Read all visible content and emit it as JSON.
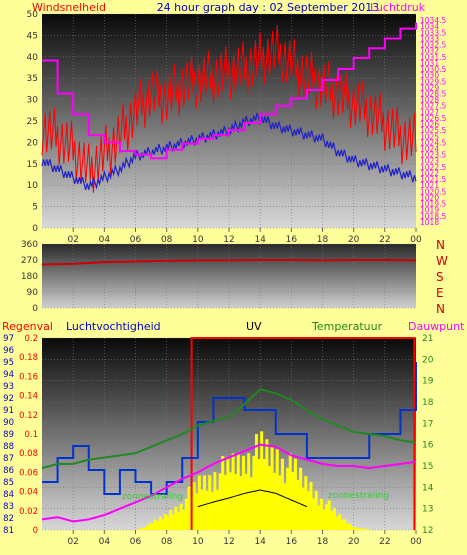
{
  "colors": {
    "background": "#ffff99",
    "wind_avg": "#2020c8",
    "wind_gust": "#ff0000",
    "pressure": "#ff00ff",
    "direction": "#cc0000",
    "humidity": "#0033cc",
    "temperature": "#228822",
    "uv": "#ff0000",
    "dewpoint": "#ff00ff",
    "solar": "#ffff00",
    "solar_ref": "#000000"
  },
  "header": {
    "left": "Windsnelheid",
    "center": "24 hour graph day : 02 September 2013",
    "right": "Luchtdruk"
  },
  "x_tick_labels": [
    "02",
    "04",
    "06",
    "08",
    "10",
    "12",
    "14",
    "16",
    "18",
    "20",
    "22",
    "00"
  ],
  "chart_data": [
    {
      "type": "line",
      "title": "24 hour graph day : 02 September 2013",
      "left_axis": {
        "label": "Windsnelheid",
        "ylim": [
          0,
          50
        ],
        "ticks": [
          0,
          5,
          10,
          15,
          20,
          25,
          30,
          35,
          40,
          45,
          50
        ]
      },
      "right_axis": {
        "label": "Luchtdruk",
        "ylim": [
          1017.5,
          1035
        ],
        "ticks": [
          "1018",
          "1018.5",
          "1019",
          "1019.5",
          "1020",
          "1020.5",
          "1021",
          "1021.5",
          "1022",
          "1022.5",
          "1023",
          "1023.5",
          "1024",
          "1024.5",
          "1025",
          "1025.5",
          "1026",
          "1026.5",
          "1027",
          "1027.5",
          "1028",
          "1028.5",
          "1029",
          "1029.5",
          "1030",
          "1030.5",
          "1031",
          "1031.5",
          "1032",
          "1032.5",
          "1033",
          "1033.5",
          "1034",
          "1034.5"
        ]
      },
      "x": [
        0,
        1,
        2,
        3,
        4,
        5,
        6,
        7,
        8,
        9,
        10,
        11,
        12,
        13,
        14,
        15,
        16,
        17,
        18,
        19,
        20,
        21,
        22,
        23,
        24
      ],
      "series": [
        {
          "name": "gust",
          "axis": "left",
          "values": [
            22,
            20,
            17,
            12,
            16,
            20,
            26,
            30,
            29,
            32,
            33,
            34,
            35,
            36,
            38,
            40,
            37,
            34,
            32,
            30,
            28,
            26,
            23,
            20,
            19
          ]
        },
        {
          "name": "avg",
          "axis": "left",
          "values": [
            16,
            14,
            12,
            10,
            12,
            14,
            17,
            18,
            19,
            20,
            21,
            22,
            23,
            25,
            26,
            24,
            23,
            22,
            21,
            18,
            16,
            15,
            14,
            13,
            12
          ]
        },
        {
          "name": "pressure",
          "axis": "right",
          "values": [
            1031.2,
            1028.5,
            1026.8,
            1025.1,
            1024.5,
            1023.8,
            1023.5,
            1023.2,
            1023.9,
            1024.4,
            1024.8,
            1025.1,
            1025.5,
            1026.1,
            1026.8,
            1027.5,
            1028.1,
            1028.8,
            1029.6,
            1030.5,
            1031.4,
            1032.2,
            1033.0,
            1033.8,
            1034.3
          ]
        }
      ]
    },
    {
      "type": "line",
      "right_labels": [
        "N",
        "W",
        "S",
        "E",
        "N"
      ],
      "ylim": [
        0,
        360
      ],
      "ticks": [
        0,
        90,
        180,
        270,
        360
      ],
      "x": [
        0,
        2,
        4,
        6,
        8,
        10,
        12,
        14,
        16,
        18,
        20,
        22,
        24
      ],
      "series": [
        {
          "name": "direction",
          "values": [
            245,
            248,
            258,
            262,
            265,
            268,
            268,
            270,
            270,
            268,
            270,
            270,
            268
          ]
        }
      ]
    },
    {
      "type": "line",
      "labels": {
        "rain": "Regenval",
        "humidity": "Luchtvochtigheid",
        "uv": "UV",
        "temperature": "Temperatuur",
        "dewpoint": "Dauwpunt"
      },
      "left_axes": {
        "humidity": {
          "ylim": [
            81,
            97
          ],
          "ticks": [
            81,
            82,
            83,
            84,
            85,
            86,
            87,
            88,
            89,
            90,
            91,
            92,
            93,
            94,
            95,
            96,
            97
          ]
        },
        "rain": {
          "ylim": [
            0,
            0.2
          ],
          "ticks": [
            "0",
            "0.02",
            "0.04",
            "0.06",
            "0.08",
            "0.1",
            "0.12",
            "0.14",
            "0.16",
            "0.18",
            "0.2"
          ]
        }
      },
      "right_axis": {
        "label": "Temperatuur",
        "ylim": [
          12,
          21
        ],
        "ticks": [
          12,
          13,
          14,
          15,
          16,
          17,
          18,
          19,
          20,
          21
        ]
      },
      "annotations": [
        "zonnestraling",
        "zonnestraling"
      ],
      "x": [
        0,
        1,
        2,
        3,
        4,
        5,
        6,
        7,
        8,
        9,
        10,
        11,
        12,
        13,
        14,
        15,
        16,
        17,
        18,
        19,
        20,
        21,
        22,
        23,
        24
      ],
      "series": [
        {
          "name": "humidity",
          "values": [
            85,
            87,
            88,
            86,
            84,
            86,
            85,
            84,
            85,
            87,
            90,
            92,
            92,
            91,
            91,
            89,
            89,
            87,
            87,
            87,
            87,
            89,
            89,
            91,
            95
          ]
        },
        {
          "name": "temperature",
          "values": [
            14.9,
            15.1,
            15.1,
            15.3,
            15.4,
            15.5,
            15.6,
            15.9,
            16.2,
            16.5,
            16.9,
            17.1,
            17.3,
            17.9,
            18.6,
            18.4,
            18.1,
            17.6,
            17.2,
            16.9,
            16.6,
            16.5,
            16.4,
            16.2,
            16.1
          ]
        },
        {
          "name": "dewpoint",
          "values": [
            12.5,
            12.6,
            12.4,
            12.5,
            12.7,
            13.0,
            13.3,
            13.6,
            14.0,
            14.4,
            14.7,
            15.1,
            15.4,
            15.7,
            16.0,
            15.9,
            15.5,
            15.3,
            15.1,
            15.0,
            15.0,
            14.9,
            15.0,
            15.1,
            15.2
          ]
        },
        {
          "name": "solar",
          "values": [
            0,
            0,
            0,
            0,
            0,
            0,
            0,
            5,
            12,
            22,
            35,
            42,
            48,
            55,
            60,
            55,
            45,
            35,
            22,
            10,
            2,
            0,
            0,
            0,
            0
          ]
        },
        {
          "name": "uv_marker",
          "values": [
            0,
            0,
            0,
            0,
            0,
            0,
            0,
            0,
            0,
            0.2,
            0.2,
            0.2,
            0.2,
            0.2,
            0.2,
            0.2,
            0.2,
            0.2,
            0.2,
            0.2,
            0.2,
            0.2,
            0.2,
            0.2,
            0.2
          ]
        }
      ]
    }
  ]
}
